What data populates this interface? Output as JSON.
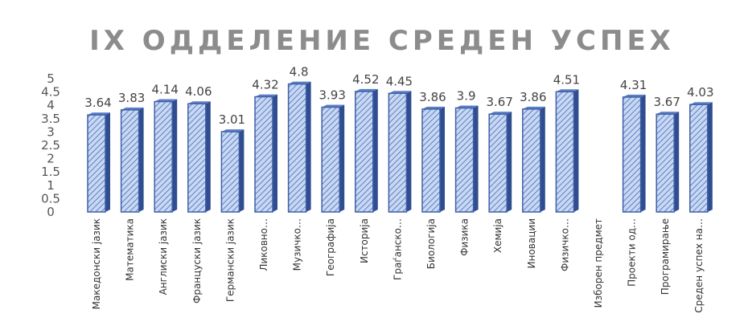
{
  "chart_data": {
    "type": "bar",
    "title": "IX ОДДЕЛЕНИЕ СРЕДЕН УСПЕХ",
    "xlabel": "",
    "ylabel": "",
    "ylim": [
      0,
      5
    ],
    "yticks": [
      "0",
      "0.5",
      "1",
      "1.5",
      "2",
      "2.5",
      "3",
      "3.5",
      "4",
      "4.5",
      "5"
    ],
    "grid": false,
    "legend": "none",
    "categories": [
      "Македонски јазик",
      "Математика",
      "Англиски јазик",
      "Француски јазик",
      "Германски јазик",
      "Ликовно…",
      "Музичко…",
      "Географија",
      "Историја",
      "Граѓанско…",
      "Биологија",
      "Физика",
      "Хемија",
      "Иновации",
      "Физичко…",
      "Изборен предмет",
      "Проекти од…",
      "Програмирање",
      "Среден успех на…"
    ],
    "values": [
      3.64,
      3.83,
      4.14,
      4.06,
      3.01,
      4.32,
      4.8,
      3.93,
      4.52,
      4.45,
      3.86,
      3.9,
      3.67,
      3.86,
      4.51,
      null,
      4.31,
      3.67,
      4.03
    ],
    "labels": [
      "3.64",
      "3.83",
      "4.14",
      "4.06",
      "3.01",
      "4.32",
      "4.8",
      "3.93",
      "4.52",
      "4.45",
      "3.86",
      "3.9",
      "3.67",
      "3.86",
      "4.51",
      "",
      "4.31",
      "3.67",
      "4.03"
    ],
    "colors": {
      "bar_fill": "#c9d8f2",
      "bar_hatch": "#5b7fc4",
      "bar_edge": "#3f5fa8",
      "bar_side": "#2f4d8f"
    }
  }
}
